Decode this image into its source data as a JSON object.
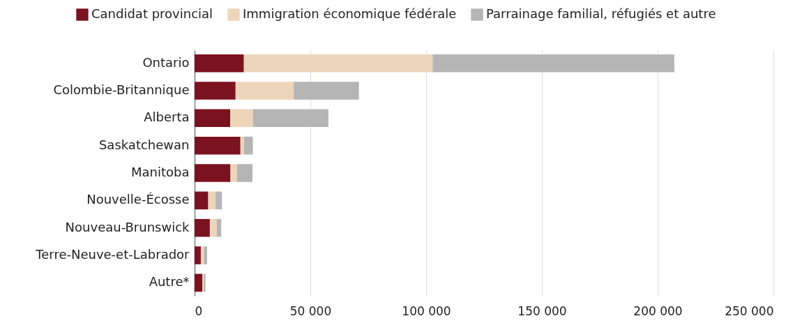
{
  "chart_data": {
    "type": "bar",
    "orientation": "horizontal",
    "stacked": true,
    "categories": [
      "Ontario",
      "Colombie-Britannique",
      "Alberta",
      "Saskatchewan",
      "Manitoba",
      "Nouvelle-Écosse",
      "Nouveau-Brunswick",
      "Terre-Neuve-et-Labrador",
      "Autre*"
    ],
    "series": [
      {
        "name": "Candidat provincial",
        "color": "#7b1220",
        "values": [
          21300,
          17700,
          15400,
          19800,
          15500,
          5900,
          6600,
          2700,
          3400
        ]
      },
      {
        "name": "Immigration économique fédérale",
        "color": "#edd5ba",
        "values": [
          81500,
          25100,
          9800,
          1600,
          2800,
          3200,
          3000,
          1300,
          600
        ]
      },
      {
        "name": "Parrainage familial, réfugiés et autre",
        "color": "#b5b5b5",
        "values": [
          104400,
          28200,
          32600,
          3800,
          6700,
          2700,
          1900,
          1400,
          700
        ]
      }
    ],
    "xlim": [
      0,
      250000
    ],
    "xticks": [
      {
        "value": 0,
        "label": "0"
      },
      {
        "value": 50000,
        "label": "50 000"
      },
      {
        "value": 100000,
        "label": "100 000"
      },
      {
        "value": 150000,
        "label": "150 000"
      },
      {
        "value": 200000,
        "label": "200 000"
      },
      {
        "value": 250000,
        "label": "250 000"
      }
    ],
    "grid": "x",
    "legend": "top"
  }
}
